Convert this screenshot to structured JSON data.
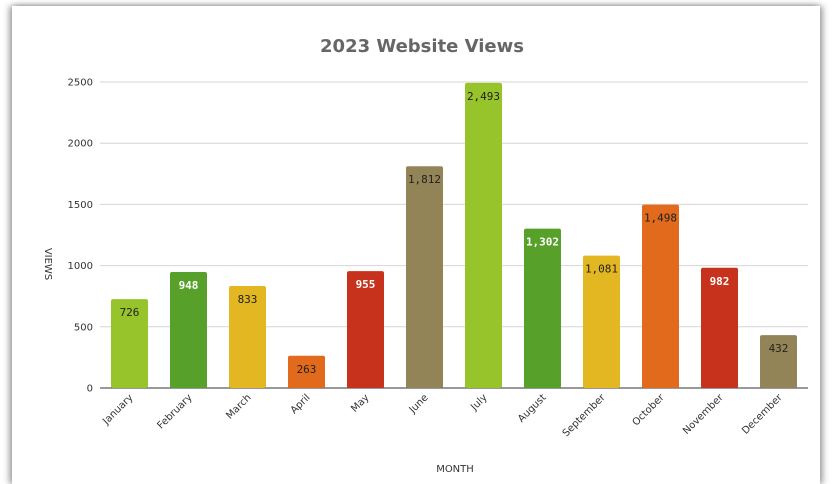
{
  "chart_data": {
    "type": "bar",
    "title": "2023 Website Views",
    "xlabel": "MONTH",
    "ylabel": "VIEWS",
    "ylim": [
      0,
      2500
    ],
    "yticks": [
      0,
      500,
      1000,
      1500,
      2000,
      2500
    ],
    "grid": true,
    "categories": [
      "January",
      "February",
      "March",
      "April",
      "May",
      "June",
      "July",
      "August",
      "September",
      "October",
      "November",
      "December"
    ],
    "values": [
      726,
      948,
      833,
      263,
      955,
      1812,
      2493,
      1302,
      1081,
      1498,
      982,
      432
    ],
    "data_labels": [
      "726",
      "948",
      "833",
      "263",
      "955",
      "1,812",
      "2,493",
      "1,302",
      "1,081",
      "1,498",
      "982",
      "432"
    ],
    "colors": [
      "#97c42a",
      "#57a12a",
      "#e3b722",
      "#e26a1c",
      "#c7321c",
      "#938457",
      "#97c42a",
      "#57a12a",
      "#e3b722",
      "#e26a1c",
      "#c7321c",
      "#938457"
    ],
    "label_colors": [
      "#222222",
      "#ffffff",
      "#222222",
      "#222222",
      "#ffffff",
      "#222222",
      "#222222",
      "#ffffff",
      "#222222",
      "#222222",
      "#ffffff",
      "#222222"
    ]
  }
}
